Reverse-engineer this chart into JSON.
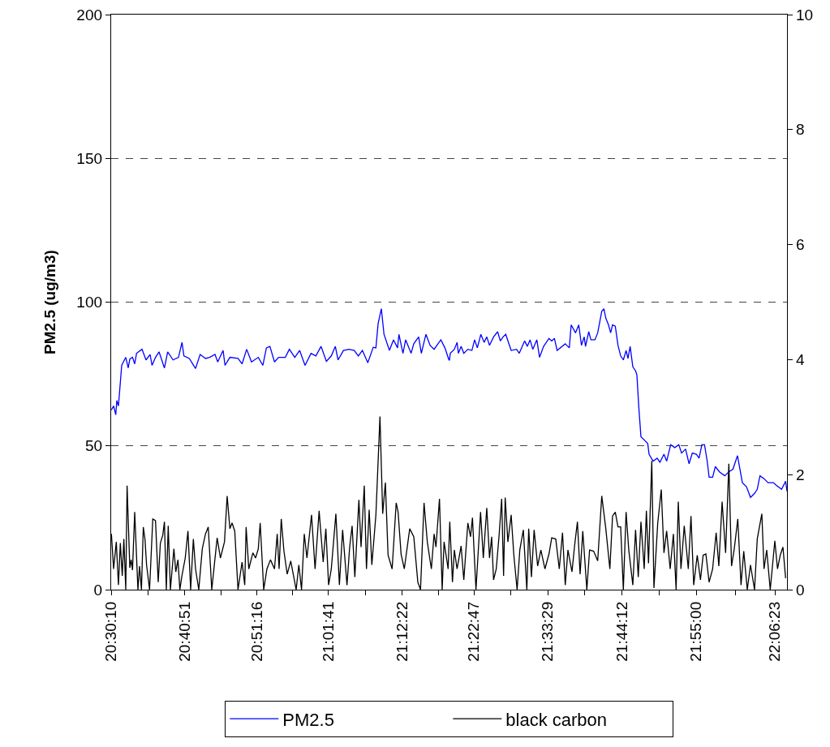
{
  "chart_data": {
    "type": "line",
    "ylabel": "PM2.5 (ug/m3)",
    "xlim": [
      20.5028,
      22.1358
    ],
    "xticks": [
      {
        "value": 20.5028,
        "label": "20:30:10"
      },
      {
        "value": 20.5918,
        "label": null
      },
      {
        "value": 20.6808,
        "label": "20:40:51"
      },
      {
        "value": 20.7676,
        "label": null
      },
      {
        "value": 20.8544,
        "label": "20:51:16"
      },
      {
        "value": 20.9413,
        "label": null
      },
      {
        "value": 21.0281,
        "label": "21:01:41"
      },
      {
        "value": 21.1171,
        "label": null
      },
      {
        "value": 21.2061,
        "label": "21:12:22"
      },
      {
        "value": 21.2929,
        "label": null
      },
      {
        "value": 21.3797,
        "label": "21:22:47"
      },
      {
        "value": 21.4689,
        "label": null
      },
      {
        "value": 21.5581,
        "label": "21:33:29"
      },
      {
        "value": 21.6474,
        "label": null
      },
      {
        "value": 21.7367,
        "label": "21:44:12"
      },
      {
        "value": 21.8267,
        "label": null
      },
      {
        "value": 21.9167,
        "label": "21:55:00"
      },
      {
        "value": 22.0116,
        "label": null
      },
      {
        "value": 22.1064,
        "label": "22:06:23"
      }
    ],
    "ylim": [
      0,
      200
    ],
    "yticks": [
      0,
      50,
      100,
      150,
      200
    ],
    "y2lim": [
      0,
      10
    ],
    "y2ticks": [
      0,
      2,
      4,
      6,
      8,
      10
    ],
    "grid": "y",
    "legend": "bottom",
    "marker": "none",
    "line_style": "solid",
    "series": [
      {
        "name": "PM2.5",
        "color": "#0000ff",
        "x": [
          20.5034,
          20.5087,
          20.5139,
          20.5165,
          20.5204,
          20.5283,
          20.5381,
          20.544,
          20.5479,
          20.5544,
          20.5597,
          20.5642,
          20.5773,
          20.5871,
          20.5969,
          20.6015,
          20.61,
          20.6185,
          20.6315,
          20.6394,
          20.6524,
          20.6655,
          20.674,
          20.6786,
          20.6916,
          20.7067,
          20.7178,
          20.7308,
          20.7406,
          20.7537,
          20.7603,
          20.7733,
          20.7779,
          20.7897,
          20.8093,
          20.8191,
          20.8302,
          20.8419,
          20.8583,
          20.8694,
          20.8779,
          20.8864,
          20.8975,
          20.9073,
          20.9236,
          20.9334,
          20.9465,
          20.9582,
          20.9713,
          20.9857,
          20.9974,
          21.0099,
          21.0229,
          21.0347,
          21.0445,
          21.051,
          21.0641,
          21.0772,
          21.0902,
          21.1,
          21.1099,
          21.1229,
          21.136,
          21.1425,
          21.1478,
          21.1556,
          21.1621,
          21.1752,
          21.185,
          21.1948,
          21.1981,
          21.2079,
          21.2144,
          21.2275,
          21.234,
          21.2458,
          21.2523,
          21.2602,
          21.2635,
          21.2733,
          21.2831,
          21.2994,
          21.3092,
          21.319,
          21.3203,
          21.3222,
          21.332,
          21.3386,
          21.3418,
          21.3484,
          21.3549,
          21.3647,
          21.3745,
          21.381,
          21.3876,
          21.3961,
          21.4039,
          21.4104,
          21.417,
          21.4268,
          21.4366,
          21.4431,
          21.4497,
          21.4562,
          21.4693,
          21.4823,
          21.4889,
          21.5019,
          21.5085,
          21.515,
          21.5215,
          21.5313,
          21.5379,
          21.5477,
          21.5607,
          21.5673,
          21.5738,
          21.5804,
          21.6,
          21.6098,
          21.6143,
          21.6248,
          21.6326,
          21.6392,
          21.6457,
          21.649,
          21.6568,
          21.662,
          21.6718,
          21.6784,
          21.6882,
          21.6934,
          21.698,
          21.7045,
          21.7097,
          21.7143,
          21.7209,
          21.7274,
          21.7339,
          21.7404,
          21.747,
          21.7516,
          21.7568,
          21.7633,
          21.7699,
          21.7731,
          21.7777,
          21.7829,
          21.7927,
          21.7993,
          21.8025,
          21.8123,
          21.8221,
          21.8287,
          21.8385,
          21.845,
          21.8548,
          21.8646,
          21.8744,
          21.881,
          21.8907,
          21.8992,
          21.9071,
          21.9169,
          21.9234,
          21.93,
          21.9365,
          21.943,
          21.9476,
          21.9561,
          21.9627,
          21.9725,
          21.9855,
          21.9953,
          22.0051,
          22.0162,
          22.028,
          22.0378,
          22.0476,
          22.0574,
          22.0639,
          22.0705,
          22.0803,
          22.0901,
          22.1031,
          22.1097,
          22.1227,
          22.1325,
          22.1358
        ],
        "values": [
          62.5,
          63.9,
          60.8,
          65.8,
          63.9,
          78.0,
          80.8,
          77.1,
          80.2,
          80.8,
          78.5,
          82.2,
          83.6,
          79.9,
          81.8,
          78.0,
          80.8,
          82.7,
          77.1,
          82.7,
          79.9,
          80.8,
          86.0,
          81.3,
          80.4,
          76.9,
          81.8,
          80.4,
          80.8,
          81.8,
          79.2,
          83.2,
          78.0,
          80.8,
          80.4,
          78.5,
          83.6,
          79.2,
          80.8,
          78.0,
          84.1,
          84.6,
          79.2,
          80.8,
          80.8,
          83.6,
          80.8,
          83.2,
          78.0,
          82.2,
          81.3,
          84.6,
          79.4,
          81.3,
          84.6,
          79.9,
          83.2,
          83.6,
          83.2,
          81.3,
          83.2,
          78.9,
          84.3,
          84.1,
          92.5,
          97.7,
          88.8,
          83.2,
          86.9,
          84.1,
          88.8,
          82.2,
          86.9,
          82.2,
          85.5,
          87.9,
          82.2,
          86.9,
          88.8,
          85.0,
          83.6,
          86.9,
          84.1,
          79.9,
          79.9,
          82.2,
          83.6,
          86.0,
          82.2,
          84.6,
          82.2,
          83.6,
          83.2,
          86.9,
          84.1,
          88.8,
          86.0,
          87.9,
          85.0,
          87.9,
          89.7,
          86.5,
          87.9,
          88.8,
          83.2,
          83.6,
          82.2,
          86.5,
          84.6,
          86.9,
          83.6,
          86.9,
          80.8,
          84.6,
          87.4,
          86.5,
          87.4,
          83.2,
          85.5,
          84.1,
          92.1,
          89.3,
          92.1,
          85.0,
          87.9,
          84.6,
          89.7,
          86.9,
          86.9,
          89.3,
          96.8,
          97.7,
          94.4,
          92.1,
          89.3,
          92.1,
          91.6,
          85.0,
          81.3,
          79.9,
          83.2,
          80.4,
          84.6,
          77.5,
          76.1,
          74.7,
          63.5,
          53.2,
          51.8,
          50.8,
          47.1,
          44.7,
          45.7,
          44.3,
          47.1,
          44.7,
          50.4,
          49.4,
          50.4,
          47.5,
          48.9,
          43.8,
          47.5,
          47.1,
          45.7,
          50.4,
          50.4,
          44.7,
          39.1,
          39.1,
          42.8,
          41.0,
          39.6,
          41.0,
          41.9,
          46.6,
          37.2,
          35.8,
          32.1,
          33.5,
          34.9,
          39.6,
          38.6,
          37.2,
          37.2,
          36.3,
          34.9,
          37.7,
          34.2
        ]
      },
      {
        "name": "black carbon",
        "color": "#000000",
        "axis": "y2",
        "x": [
          20.5034,
          20.5087,
          20.5152,
          20.5204,
          20.525,
          20.5296,
          20.5335,
          20.5381,
          20.5413,
          20.5479,
          20.5511,
          20.5544,
          20.5597,
          20.5675,
          20.5714,
          20.576,
          20.5805,
          20.5845,
          20.5884,
          20.5956,
          20.6034,
          20.61,
          20.6165,
          20.6217,
          20.6276,
          20.6315,
          20.6361,
          20.6407,
          20.6459,
          20.6544,
          20.659,
          20.6642,
          20.6688,
          20.6733,
          20.6818,
          20.6884,
          20.6949,
          20.7014,
          20.7067,
          20.7145,
          20.723,
          20.7308,
          20.7374,
          20.7459,
          20.7589,
          20.7668,
          20.7766,
          20.7831,
          20.7897,
          20.7949,
          20.8014,
          20.8093,
          20.8191,
          20.8256,
          20.8289,
          20.8354,
          20.8452,
          20.8517,
          20.8583,
          20.8629,
          20.8714,
          20.8792,
          20.8877,
          20.8975,
          20.904,
          20.9086,
          20.9138,
          20.9203,
          20.9282,
          20.9367,
          20.9498,
          20.9563,
          20.9628,
          20.9694,
          20.9759,
          20.987,
          20.9955,
          21.0053,
          21.0151,
          21.0216,
          21.0282,
          21.0347,
          21.0458,
          21.0543,
          21.0621,
          21.0726,
          21.0791,
          21.085,
          21.0916,
          21.1014,
          21.1066,
          21.1144,
          21.1197,
          21.1262,
          21.1327,
          21.1425,
          21.1523,
          21.1589,
          21.1654,
          21.1719,
          21.1817,
          21.1915,
          21.1961,
          21.2033,
          21.2111,
          21.2242,
          21.234,
          21.2438,
          21.2503,
          21.2588,
          21.2667,
          21.2765,
          21.2831,
          21.2876,
          21.2961,
          21.3026,
          21.3072,
          21.317,
          21.321,
          21.3275,
          21.332,
          21.3386,
          21.3484,
          21.3549,
          21.3647,
          21.3712,
          21.3758,
          21.3843,
          21.3954,
          21.402,
          21.4104,
          21.417,
          21.4222,
          21.4268,
          21.4333,
          21.4399,
          21.4464,
          21.451,
          21.4549,
          21.4614,
          21.4693,
          21.4758,
          21.4837,
          21.4902,
          21.4987,
          21.5072,
          21.5117,
          21.5183,
          21.5248,
          21.5333,
          21.5411,
          21.5509,
          21.5607,
          21.5673,
          21.5771,
          21.5856,
          21.5934,
          21.6,
          21.6065,
          21.6163,
          21.6228,
          21.6294,
          21.6359,
          21.6424,
          21.6522,
          21.6588,
          21.6686,
          21.6784,
          21.6882,
          21.698,
          21.7078,
          21.7143,
          21.7209,
          21.7274,
          21.7339,
          21.7404,
          21.747,
          21.7535,
          21.7633,
          21.7699,
          21.7764,
          21.7829,
          21.7908,
          21.796,
          21.8012,
          21.8091,
          21.8143,
          21.8235,
          21.832,
          21.8385,
          21.845,
          21.8535,
          21.8613,
          21.8679,
          21.8731,
          21.8796,
          21.8875,
          21.8973,
          21.9038,
          21.9104,
          21.9189,
          21.9267,
          21.9332,
          21.9398,
          21.9476,
          21.9561,
          21.9646,
          21.9711,
          21.979,
          21.9875,
          21.9953,
          22.0018,
          22.0084,
          22.0169,
          22.0247,
          22.0313,
          22.0398,
          22.0476,
          22.0574,
          22.0639,
          22.075,
          22.0803,
          22.0868,
          22.0953,
          22.1064,
          22.1129,
          22.1195,
          22.126,
          22.1325
        ],
        "values": [
          0.97,
          0.36,
          0.83,
          0.08,
          0.81,
          0.24,
          0.88,
          0,
          1.81,
          0.38,
          0.52,
          0.34,
          1.35,
          0,
          0.41,
          0,
          1.09,
          0.88,
          0.43,
          0,
          1.23,
          1.2,
          0.13,
          0.81,
          0.95,
          1.18,
          0,
          1.11,
          0,
          0.71,
          0.31,
          0.52,
          0,
          0.22,
          0.55,
          1.02,
          0,
          0.88,
          0.36,
          0,
          0.71,
          0.97,
          1.09,
          0,
          0.9,
          0.55,
          0.83,
          1.63,
          1.06,
          1.16,
          1.02,
          0,
          0.48,
          0.08,
          1.09,
          0.36,
          0.64,
          0.55,
          0.71,
          1.16,
          0,
          0.36,
          0.52,
          0.36,
          0.97,
          0.36,
          1.23,
          0.67,
          0.27,
          0.5,
          0,
          0.43,
          0,
          0.97,
          0.55,
          1.3,
          0.36,
          1.37,
          0.48,
          1.06,
          0.08,
          0.36,
          1.32,
          0.08,
          1.04,
          0.08,
          0.74,
          1.11,
          0.22,
          1.56,
          0.74,
          1.81,
          0.36,
          1.39,
          0.43,
          1.3,
          3.01,
          1.32,
          1.86,
          0.6,
          0.36,
          1.51,
          1.35,
          0.62,
          0.36,
          1.06,
          0.92,
          0.13,
          0,
          1.51,
          0.83,
          0.36,
          0.97,
          0.74,
          1.58,
          0,
          0.83,
          0.36,
          1.18,
          0.13,
          0.69,
          0.36,
          0.76,
          0.17,
          1.16,
          0.92,
          1.25,
          0,
          1.35,
          0.55,
          1.42,
          0.55,
          0.92,
          0.17,
          0.36,
          0.92,
          1.58,
          0.24,
          1.6,
          0.83,
          1.3,
          0.6,
          0,
          0.69,
          1.04,
          0,
          1.06,
          0.22,
          1.04,
          0.41,
          0.69,
          0.36,
          0.62,
          0.9,
          0.88,
          0.36,
          0.99,
          0.08,
          0.69,
          0.31,
          0.78,
          1.18,
          0.27,
          1.02,
          0,
          0.69,
          0.67,
          0.5,
          1.63,
          1.06,
          0.36,
          1.28,
          1.35,
          1.09,
          1.09,
          0,
          1.35,
          0.69,
          0.08,
          1.04,
          0.22,
          1.18,
          0.36,
          1.37,
          0.46,
          2.24,
          0.03,
          1.16,
          1.74,
          0.64,
          1.02,
          0.36,
          0.97,
          0,
          1.53,
          0.36,
          1.11,
          0.36,
          1.28,
          0.08,
          0.6,
          0.17,
          0.6,
          0.62,
          0.13,
          0.36,
          0.99,
          0.41,
          1.53,
          0.64,
          2.19,
          0.41,
          0.71,
          1.23,
          0.08,
          0.67,
          0,
          0.43,
          0,
          0.88,
          1.32,
          0.36,
          0.69,
          0,
          0.85,
          0.36,
          0.6,
          0.74,
          0.2
        ]
      }
    ]
  }
}
